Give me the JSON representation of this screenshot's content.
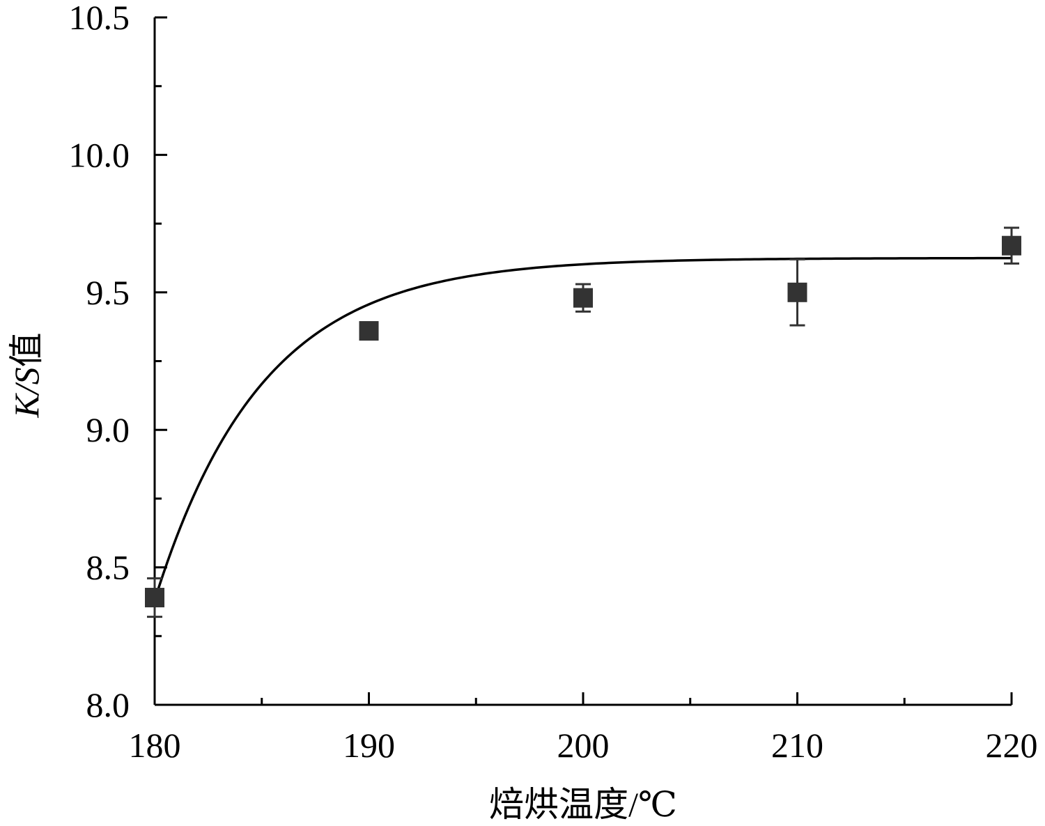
{
  "chart_data": {
    "type": "scatter",
    "xlabel": "焙烘温度/℃",
    "ylabel": "K/S值",
    "ylabel_italic_part": "K/S",
    "ylabel_suffix": "值",
    "xlim": [
      180,
      220
    ],
    "ylim": [
      8.0,
      10.5
    ],
    "x_ticks": [
      180,
      190,
      200,
      210,
      220
    ],
    "x_tick_labels": [
      "180",
      "190",
      "200",
      "210",
      "220"
    ],
    "x_minor_ticks": [
      185,
      195,
      205,
      215
    ],
    "y_ticks": [
      8.0,
      8.5,
      9.0,
      9.5,
      10.0,
      10.5
    ],
    "y_tick_labels": [
      "8.0",
      "8.5",
      "9.0",
      "9.5",
      "10.0",
      "10.5"
    ],
    "y_minor_ticks": [
      8.25,
      8.75,
      9.25,
      9.75,
      10.25
    ],
    "grid": false,
    "series": [
      {
        "x": [
          180,
          190,
          200,
          210,
          220
        ],
        "y": [
          8.39,
          9.36,
          9.48,
          9.5,
          9.67
        ],
        "error": [
          0.07,
          0.02,
          0.05,
          0.12,
          0.065
        ],
        "marker": "square",
        "color": "#333333"
      }
    ],
    "fit_curve": {
      "type": "exponential",
      "a": 9.625,
      "b": 1.245,
      "tau": 5.0,
      "x0": 180,
      "color": "#000000"
    }
  }
}
